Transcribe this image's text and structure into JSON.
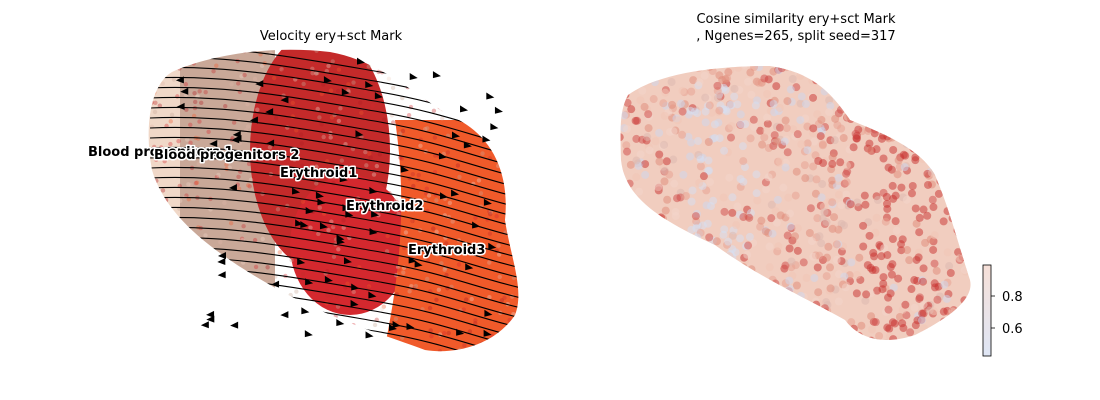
{
  "chart_data": [
    {
      "type": "scatter",
      "title": "Velocity ery+sct Mark",
      "overlay": "streamlines with arrowheads",
      "axes_visible": false,
      "grid": false,
      "cluster_labels": [
        {
          "name": "Blood progenitors 1",
          "color": "#f0d8c8"
        },
        {
          "name": "Blood progenitors 2",
          "color": "#c9a898"
        },
        {
          "name": "Erythroid1",
          "color": "#c42a2a"
        },
        {
          "name": "Erythroid2",
          "color": "#d4282e"
        },
        {
          "name": "Erythroid3",
          "color": "#f05a2a"
        }
      ]
    },
    {
      "type": "scatter",
      "title_line1": "Cosine similarity ery+sct Mark",
      "title_line2": ", Ngenes=265, split seed=317",
      "axes_visible": false,
      "grid": false,
      "colormap": "coolwarm",
      "colorbar": {
        "ticks": [
          0.8,
          0.6
        ],
        "tick_labels": [
          "0.8",
          "0.6"
        ],
        "range": [
          0.44,
          0.995
        ],
        "top_color": "#f6e0d8",
        "bottom_color": "#dfe6f5"
      }
    }
  ]
}
